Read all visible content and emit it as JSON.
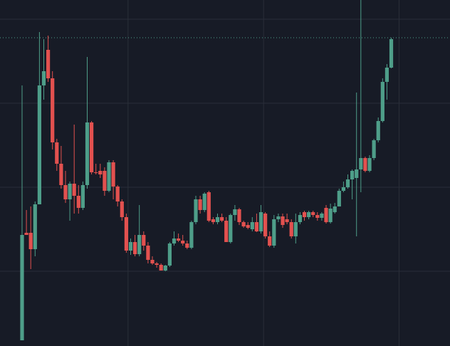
{
  "chart_data": {
    "type": "candlestick",
    "open": [
      8,
      159,
      159,
      136,
      199,
      366,
      416,
      376,
      286,
      256,
      226,
      206,
      228,
      211,
      194,
      226,
      314,
      244,
      246,
      246,
      218,
      258,
      224,
      203,
      181,
      134,
      146,
      129,
      156,
      141,
      121,
      116,
      114,
      106,
      113,
      144,
      151,
      148,
      144,
      138,
      174,
      206,
      191,
      216,
      178,
      174,
      181,
      176,
      146,
      184,
      192,
      174,
      170,
      164,
      174,
      161,
      186,
      154,
      141,
      178,
      182,
      178,
      174,
      154,
      174,
      188,
      181,
      188,
      184,
      180,
      194,
      174,
      188,
      196,
      218,
      223,
      234,
      236,
      248,
      264,
      246,
      264,
      289,
      316,
      371,
      391
    ],
    "high": [
      366,
      191,
      196,
      203,
      441,
      431,
      436,
      386,
      291,
      281,
      246,
      231,
      311,
      226,
      231,
      406,
      316,
      256,
      256,
      251,
      261,
      261,
      226,
      206,
      186,
      151,
      156,
      198,
      161,
      146,
      126,
      118,
      116,
      114,
      146,
      161,
      158,
      156,
      148,
      176,
      211,
      211,
      216,
      218,
      181,
      186,
      186,
      181,
      186,
      198,
      194,
      176,
      174,
      181,
      186,
      198,
      188,
      161,
      184,
      186,
      186,
      186,
      178,
      186,
      188,
      190,
      190,
      190,
      188,
      188,
      198,
      200,
      201,
      221,
      231,
      241,
      248,
      356,
      486,
      266,
      268,
      291,
      321,
      376,
      396,
      433
    ],
    "low": [
      8,
      156,
      108,
      126,
      199,
      346,
      371,
      276,
      246,
      221,
      201,
      176,
      186,
      186,
      191,
      221,
      241,
      241,
      236,
      211,
      216,
      206,
      196,
      176,
      131,
      128,
      126,
      126,
      134,
      116,
      114,
      110,
      106,
      105,
      111,
      141,
      146,
      141,
      136,
      136,
      171,
      186,
      188,
      174,
      171,
      171,
      174,
      146,
      144,
      176,
      170,
      166,
      164,
      161,
      160,
      158,
      151,
      139,
      138,
      174,
      166,
      171,
      151,
      144,
      171,
      176,
      178,
      181,
      176,
      176,
      172,
      172,
      186,
      196,
      216,
      221,
      206,
      154,
      216,
      244,
      244,
      261,
      286,
      314,
      346,
      390
    ],
    "close": [
      156,
      156,
      136,
      199,
      366,
      386,
      376,
      286,
      256,
      226,
      206,
      228,
      211,
      194,
      226,
      314,
      244,
      243,
      241,
      218,
      258,
      224,
      203,
      181,
      134,
      146,
      129,
      156,
      141,
      121,
      116,
      114,
      106,
      113,
      144,
      151,
      148,
      144,
      138,
      174,
      206,
      191,
      214,
      176,
      174,
      181,
      176,
      146,
      184,
      192,
      174,
      168,
      166,
      174,
      161,
      188,
      154,
      141,
      178,
      182,
      170,
      174,
      154,
      174,
      184,
      181,
      188,
      184,
      180,
      186,
      174,
      193,
      196,
      218,
      223,
      234,
      246,
      248,
      264,
      246,
      264,
      289,
      316,
      371,
      391,
      431
    ],
    "up_color": "#4e9e89",
    "down_color": "#e2514f",
    "ylim": [
      0,
      486
    ],
    "yticks": [
      105,
      223,
      341,
      459
    ],
    "xlim": [
      -5.08,
      98.52
    ],
    "xticks": [
      24.4,
      55.6,
      86.8
    ],
    "grid": true,
    "price_line": 433,
    "price_line_color": "#4e9e89"
  }
}
